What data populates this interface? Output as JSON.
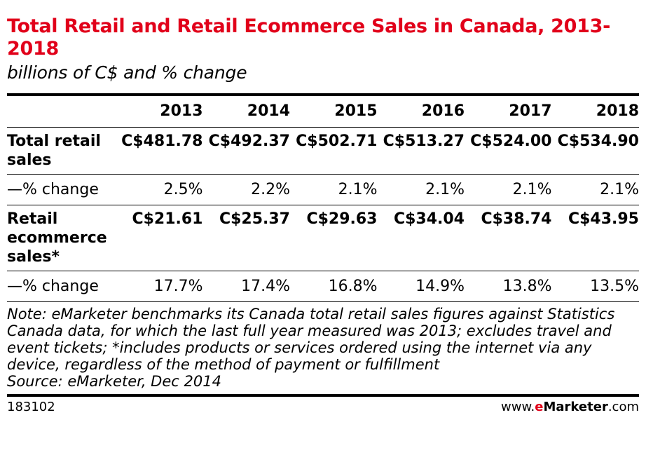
{
  "header": {
    "title": "Total Retail and Retail Ecommerce Sales in Canada, 2013-2018",
    "subtitle": "billions of C$ and % change"
  },
  "chart_data": {
    "type": "table",
    "title": "Total Retail and Retail Ecommerce Sales in Canada, 2013-2018",
    "subtitle": "billions of C$ and % change",
    "columns": [
      "2013",
      "2014",
      "2015",
      "2016",
      "2017",
      "2018"
    ],
    "rows": [
      {
        "label": "Total retail sales",
        "kind": "main",
        "cells": [
          "C$481.78",
          "C$492.37",
          "C$502.71",
          "C$513.27",
          "C$524.00",
          "C$534.90"
        ],
        "values": [
          481.78,
          492.37,
          502.71,
          513.27,
          524.0,
          534.9
        ]
      },
      {
        "label": "—% change",
        "kind": "change",
        "cells": [
          "2.5%",
          "2.2%",
          "2.1%",
          "2.1%",
          "2.1%",
          "2.1%"
        ],
        "values": [
          2.5,
          2.2,
          2.1,
          2.1,
          2.1,
          2.1
        ]
      },
      {
        "label": "Retail ecommerce sales*",
        "kind": "main",
        "cells": [
          "C$21.61",
          "C$25.37",
          "C$29.63",
          "C$34.04",
          "C$38.74",
          "C$43.95"
        ],
        "values": [
          21.61,
          25.37,
          29.63,
          34.04,
          38.74,
          43.95
        ]
      },
      {
        "label": "—% change",
        "kind": "change",
        "cells": [
          "17.7%",
          "17.4%",
          "16.8%",
          "14.9%",
          "13.8%",
          "13.5%"
        ],
        "values": [
          17.7,
          17.4,
          16.8,
          14.9,
          13.8,
          13.5
        ]
      }
    ]
  },
  "footnote": {
    "note": "Note: eMarketer benchmarks its Canada total retail sales figures against Statistics Canada data, for which the last full year measured was 2013; excludes travel and event tickets; *includes products or services ordered using the internet via any device, regardless of the method of payment or fulfillment",
    "source": "Source: eMarketer, Dec 2014"
  },
  "footer": {
    "chart_id": "183102",
    "brand_prefix": "www.",
    "brand_e": "e",
    "brand_name": "Marketer",
    "brand_suffix": ".com"
  },
  "colors": {
    "title": "#e1001a",
    "text": "#000000",
    "background": "#ffffff"
  }
}
